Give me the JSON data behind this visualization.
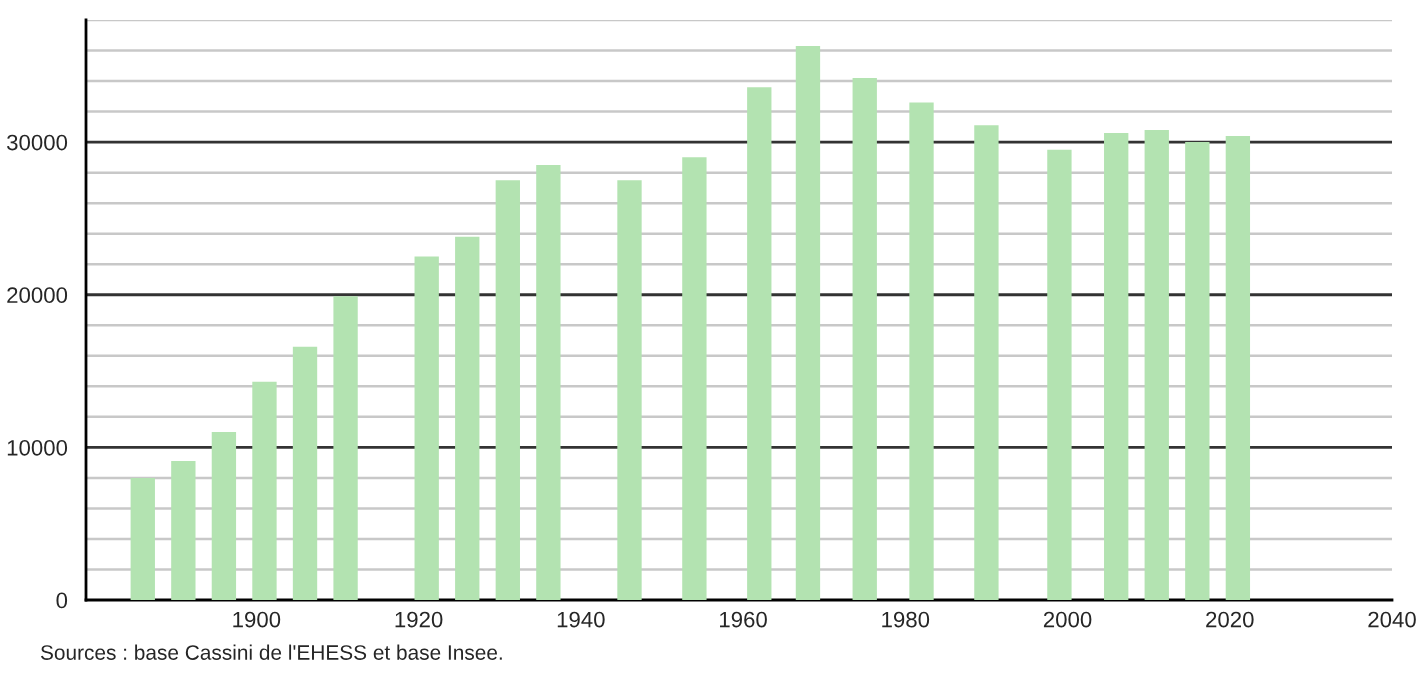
{
  "chart_data": {
    "type": "bar",
    "x": [
      1886,
      1891,
      1896,
      1901,
      1906,
      1911,
      1921,
      1926,
      1931,
      1936,
      1946,
      1954,
      1962,
      1968,
      1975,
      1982,
      1990,
      1999,
      2006,
      2011,
      2016,
      2021
    ],
    "values": [
      8000,
      9100,
      11000,
      14300,
      16600,
      19900,
      22500,
      23800,
      27500,
      28500,
      27500,
      29000,
      33600,
      36300,
      34200,
      32600,
      31100,
      29500,
      30600,
      30800,
      30000,
      30400
    ],
    "color": "#b3e3b1",
    "xlim": [
      1879,
      2040
    ],
    "xticks": [
      1900,
      1920,
      1940,
      1960,
      1980,
      2000,
      2020,
      2040
    ],
    "ylim": [
      0,
      38000
    ],
    "yticks": [
      0,
      {
        "value": 2000,
        "label": null
      },
      {
        "value": 4000,
        "label": null
      },
      {
        "value": 6000,
        "label": null
      },
      {
        "value": 8000,
        "label": null
      },
      10000,
      {
        "value": 12000,
        "label": null
      },
      {
        "value": 14000,
        "label": null
      },
      {
        "value": 16000,
        "label": null
      },
      {
        "value": 18000,
        "label": null
      },
      20000,
      {
        "value": 22000,
        "label": null
      },
      {
        "value": 24000,
        "label": null
      },
      {
        "value": 26000,
        "label": null
      },
      {
        "value": 28000,
        "label": null
      },
      30000,
      {
        "value": 32000,
        "label": null
      },
      {
        "value": 34000,
        "label": null
      },
      {
        "value": 36000,
        "label": null
      },
      {
        "value": 38000,
        "label": null
      }
    ],
    "grid": "y",
    "annotations": [
      "Sources : base Cassini de l'EHESS et base Insee."
    ]
  }
}
